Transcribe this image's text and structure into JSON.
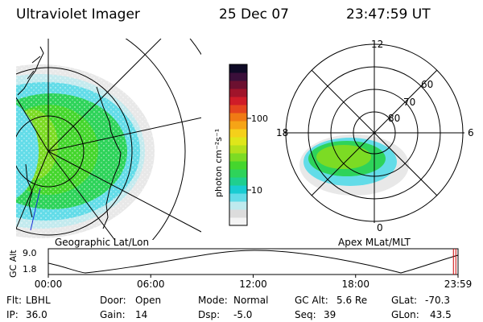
{
  "header": {
    "instrument": "Ultraviolet Imager",
    "date": "25 Dec 07",
    "time": "23:47:59 UT"
  },
  "colorbar": {
    "label": "photon cm⁻²s⁻¹",
    "ticks": [
      {
        "label": "100",
        "value": 100
      },
      {
        "label": "10",
        "value": 10
      }
    ],
    "colors": [
      "#f4f4f4",
      "#dcdcdc",
      "#bfeaee",
      "#63dce8",
      "#19ccd2",
      "#1fcf8f",
      "#2ed35a",
      "#45d62d",
      "#7cdb24",
      "#b4e01c",
      "#dfe61a",
      "#f5d01a",
      "#f6a416",
      "#f07a14",
      "#e4451e",
      "#cf1c28",
      "#a0142a",
      "#6c1030",
      "#3a0f3a",
      "#0e0a26"
    ]
  },
  "polar_plot": {
    "mlt_labels": [
      {
        "label": "12",
        "angle": 0
      },
      {
        "label": "6",
        "angle": 90
      },
      {
        "label": "0",
        "angle": 180
      },
      {
        "label": "18",
        "angle": 270
      }
    ],
    "mlat_labels": [
      "80",
      "70",
      "60"
    ]
  },
  "plot_labels": {
    "left": "Geographic Lat/Lon",
    "right": "Apex MLat/MLT"
  },
  "altitude_plot": {
    "ylabel": "GC Alt",
    "ymax_label": "9.0",
    "ymin_label": "1.8",
    "xticks": [
      "00:00",
      "06:00",
      "12:00",
      "18:00",
      "23:59"
    ],
    "marker_time_hours": 23.8
  },
  "footer": {
    "row1": {
      "flt_label": "Flt:",
      "flt_value": "LBHL",
      "door_label": "Door:",
      "door_value": "Open",
      "mode_label": "Mode:",
      "mode_value": "Normal",
      "gcalt_label": "GC Alt:",
      "gcalt_value": "5.6 Re",
      "glat_label": "GLat:",
      "glat_value": "-70.3"
    },
    "row2": {
      "ip_label": "IP:",
      "ip_value": "36.0",
      "gain_label": "Gain:",
      "gain_value": "14",
      "dsp_label": "Dsp:",
      "dsp_value": "-5.0",
      "seq_label": "Seq:",
      "seq_value": "39",
      "glon_label": "GLon:",
      "glon_value": "43.5"
    }
  }
}
